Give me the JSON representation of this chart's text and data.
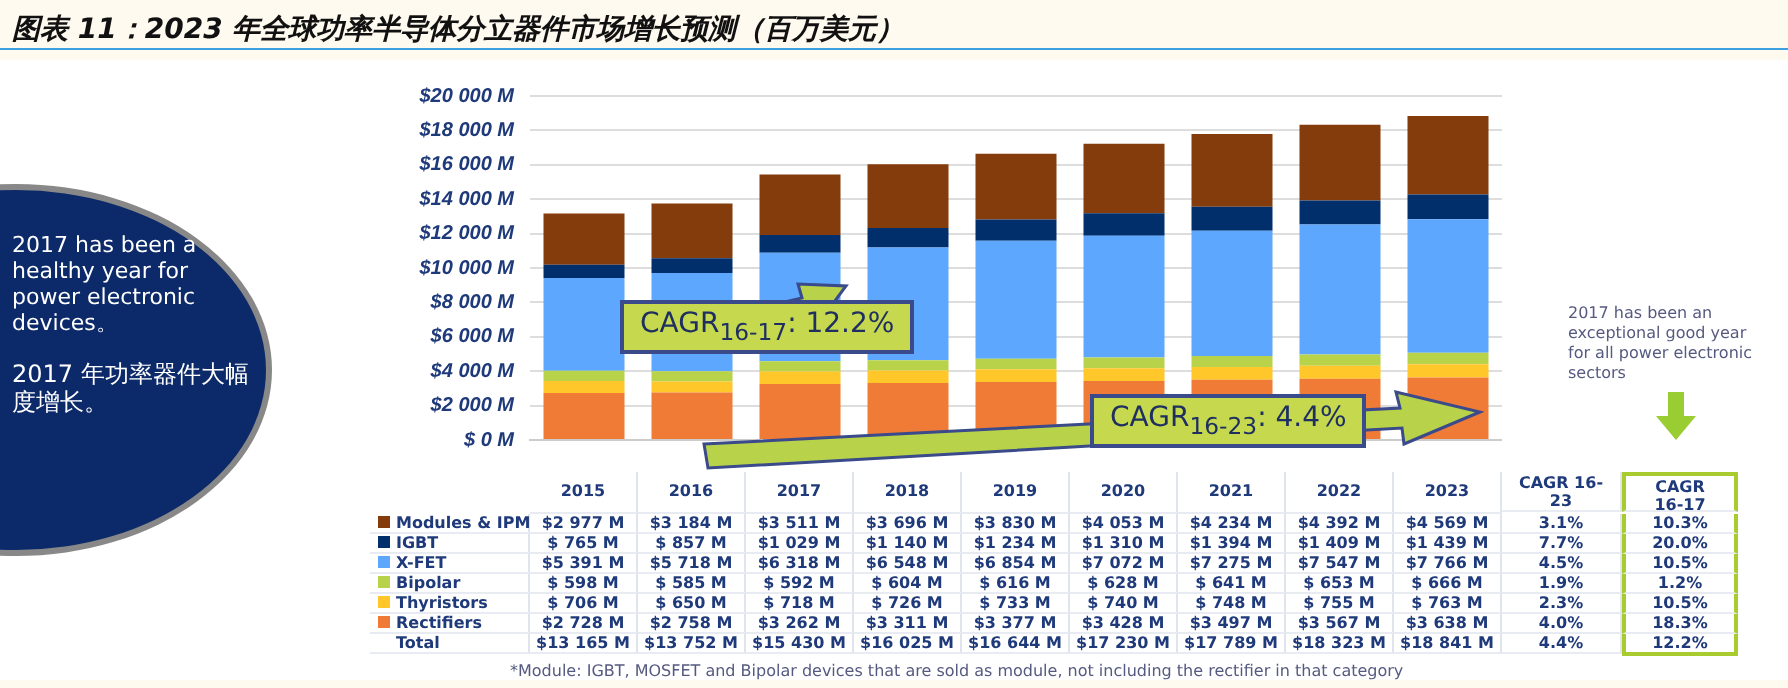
{
  "chart_data": {
    "type": "bar",
    "stacked": true,
    "title": "图表 11：2023 年全球功率半导体分立器件市场增长预测（百万美元）",
    "categories": [
      "2015",
      "2016",
      "2017",
      "2018",
      "2019",
      "2020",
      "2021",
      "2022",
      "2023"
    ],
    "series": [
      {
        "name": "Rectifiers",
        "color": "#ef7b36",
        "values": [
          2728,
          2758,
          3262,
          3311,
          3377,
          3428,
          3497,
          3567,
          3638
        ],
        "value_labels": [
          "$2 728 M",
          "$2 758 M",
          "$3 262 M",
          "$3 311 M",
          "$3 377 M",
          "$3 428 M",
          "$3 497 M",
          "$3 567 M",
          "$3 638 M"
        ]
      },
      {
        "name": "Thyristors",
        "color": "#ffc729",
        "values": [
          706,
          650,
          718,
          726,
          733,
          740,
          748,
          755,
          763
        ],
        "value_labels": [
          "$ 706 M",
          "$ 650 M",
          "$ 718 M",
          "$ 726 M",
          "$ 733 M",
          "$ 740 M",
          "$ 748 M",
          "$ 755 M",
          "$ 763 M"
        ]
      },
      {
        "name": "Bipolar",
        "color": "#b8d34a",
        "values": [
          598,
          585,
          592,
          604,
          616,
          628,
          641,
          653,
          666
        ],
        "value_labels": [
          "$ 598 M",
          "$ 585 M",
          "$ 592 M",
          "$ 604 M",
          "$ 616 M",
          "$ 628 M",
          "$ 641 M",
          "$ 653 M",
          "$ 666 M"
        ]
      },
      {
        "name": "X-FET",
        "color": "#5ea7ff",
        "values": [
          5391,
          5718,
          6318,
          6548,
          6854,
          7072,
          7275,
          7547,
          7766
        ],
        "value_labels": [
          "$5 391 M",
          "$5 718 M",
          "$6 318 M",
          "$6 548 M",
          "$6 854 M",
          "$7 072 M",
          "$7 275 M",
          "$7 547 M",
          "$7 766 M"
        ]
      },
      {
        "name": "IGBT",
        "color": "#002f6c",
        "values": [
          765,
          857,
          1029,
          1140,
          1234,
          1310,
          1394,
          1409,
          1439
        ],
        "value_labels": [
          "$ 765 M",
          "$ 857 M",
          "$1 029 M",
          "$1 140 M",
          "$1 234 M",
          "$1 310 M",
          "$1 394 M",
          "$1 409 M",
          "$1 439 M"
        ]
      },
      {
        "name": "Modules & IPM",
        "color": "#843c0c",
        "values": [
          2977,
          3184,
          3511,
          3696,
          3830,
          4053,
          4234,
          4392,
          4569
        ],
        "value_labels": [
          "$2 977 M",
          "$3 184 M",
          "$3 511 M",
          "$3 696 M",
          "$3 830 M",
          "$4 053 M",
          "$4 234 M",
          "$4 392 M",
          "$4 569 M"
        ]
      }
    ],
    "ylim": [
      0,
      20000
    ],
    "yticks": [
      {
        "value": 0,
        "label": "$ 0 M"
      },
      {
        "value": 2000,
        "label": "$2 000 M"
      },
      {
        "value": 4000,
        "label": "$4 000 M"
      },
      {
        "value": 6000,
        "label": "$6 000 M"
      },
      {
        "value": 8000,
        "label": "$8 000 M"
      },
      {
        "value": 10000,
        "label": "$10 000 M"
      },
      {
        "value": 12000,
        "label": "$12 000 M"
      },
      {
        "value": 14000,
        "label": "$14 000 M"
      },
      {
        "value": 16000,
        "label": "$16 000 M"
      },
      {
        "value": 18000,
        "label": "$18 000 M"
      },
      {
        "value": 20000,
        "label": "$20 000 M"
      }
    ],
    "grid": "y",
    "legend": "bottom left",
    "tick_labels": "y",
    "data_labels": true,
    "annotations": [
      "CAGR$_{16-17}$: 12.2%",
      "CAGR$_{16-23}$: 4.4%",
      "2017 has been an exceptional good year for all power electronic sectors",
      "2017 has been a healthy year for power electronic devices。",
      "2017 年功率器件大幅度增长。",
      "CAGR 16-23",
      "CAGR 16-17",
      "3.1%",
      "10.3%",
      "7.7%",
      "20.0%",
      "4.5%",
      "10.5%",
      "1.9%",
      "1.2%",
      "2.3%",
      "10.5%",
      "4.0%",
      "18.3%",
      "4.4%",
      "12.2%",
      "*Module: IGBT, MOSFET and Bipolar devices that are sold as module, not including the rectifier in that category",
      "Total",
      "$13 165 M",
      "$13 752 M",
      "$15 430 M",
      "$16 025 M",
      "$16 644 M",
      "$17 230 M",
      "$17 789 M",
      "$18 323 M",
      "$18 841 M"
    ]
  }
}
